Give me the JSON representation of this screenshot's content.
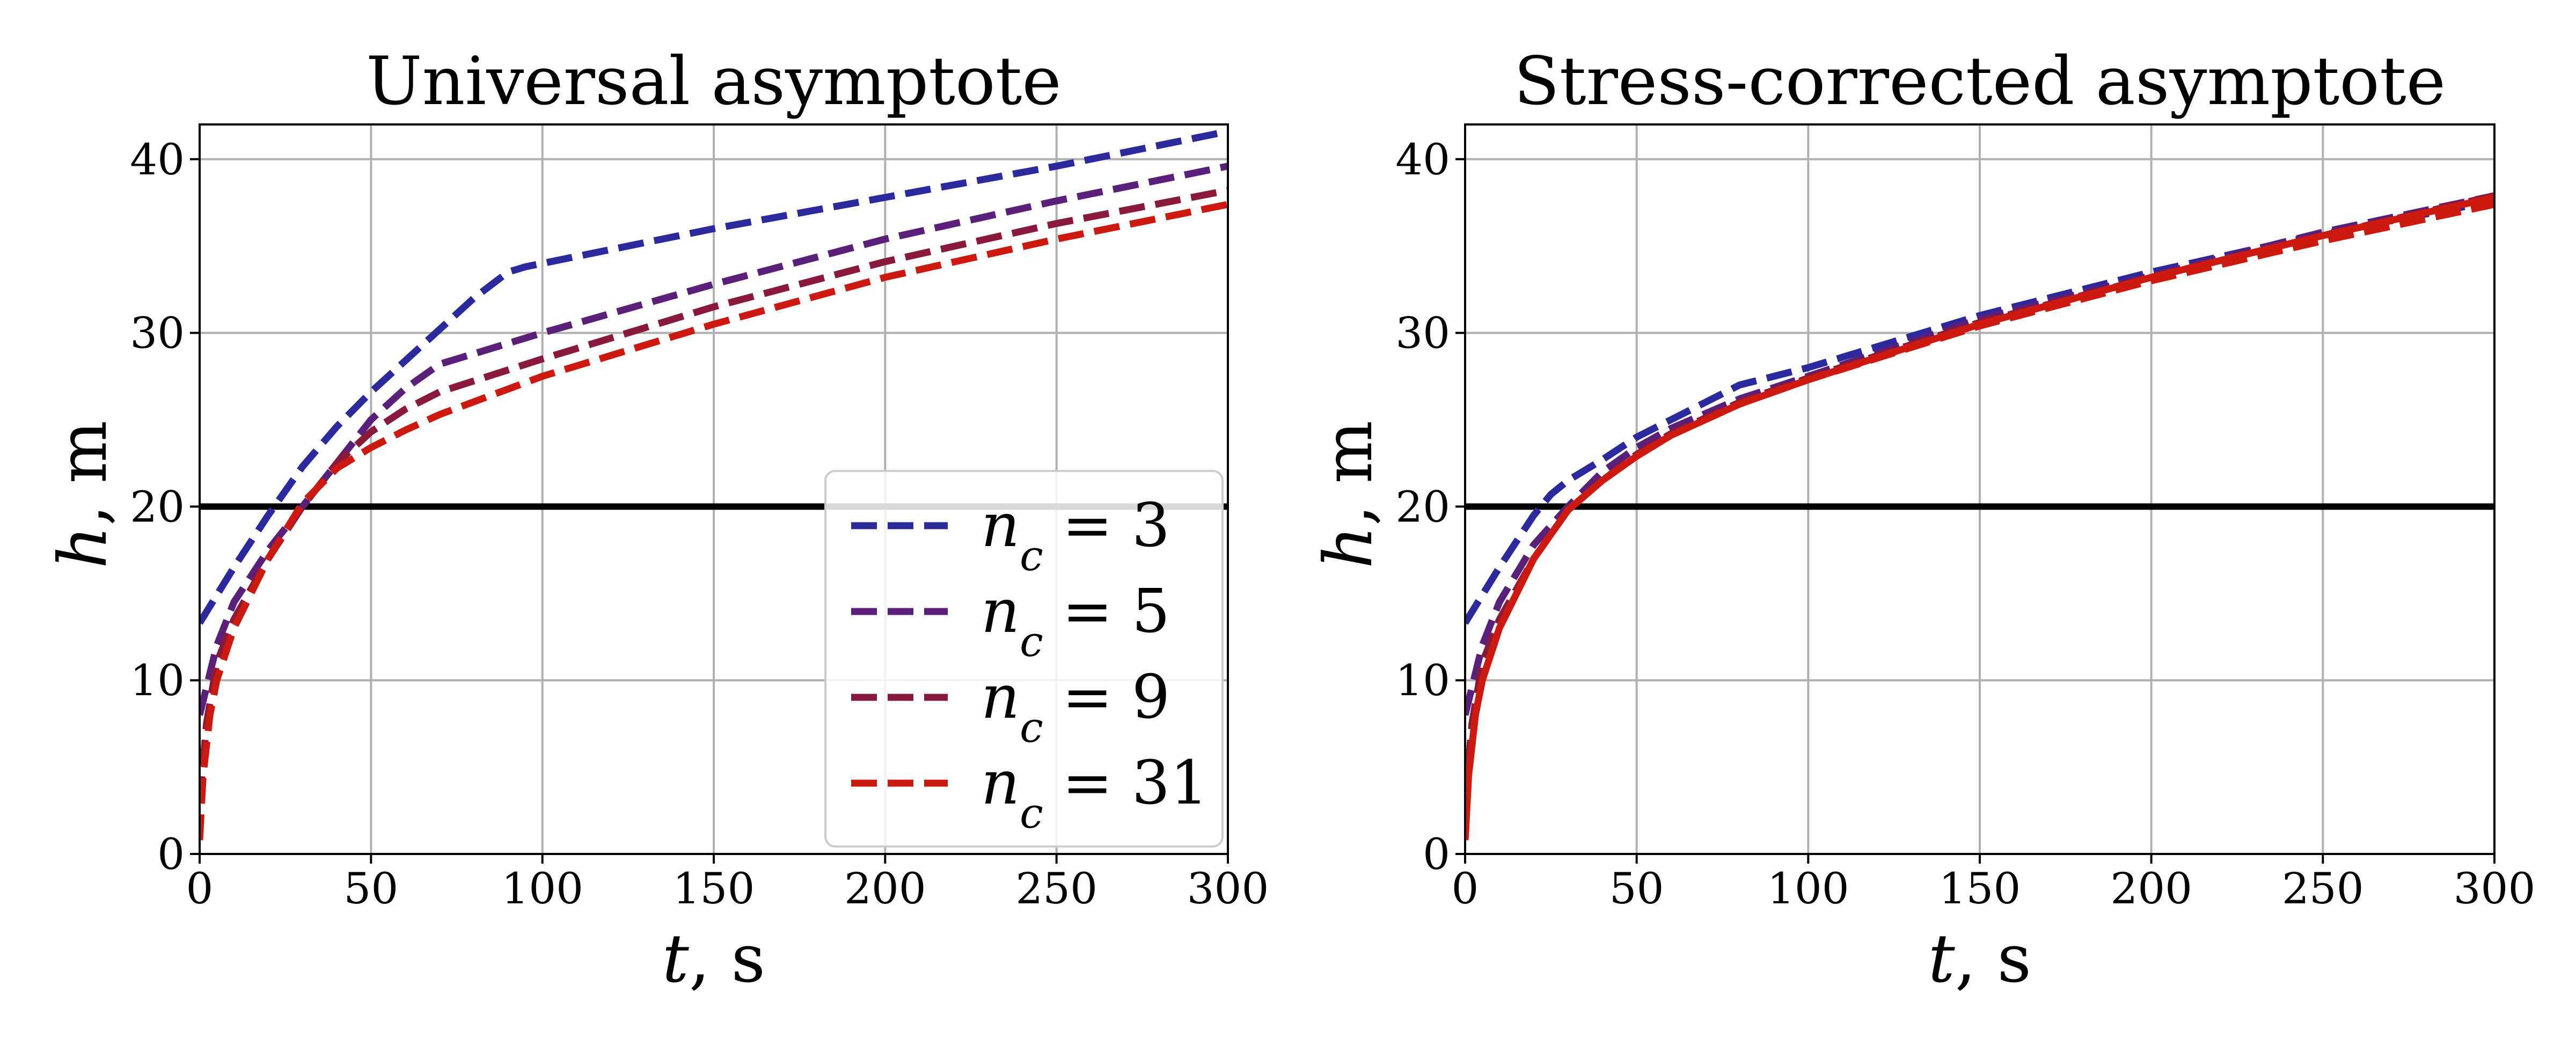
{
  "chart_data": [
    {
      "type": "line",
      "title": "Universal asymptote",
      "xlabel_var": "t",
      "xlabel_unit": ", s",
      "ylabel_var": "h",
      "ylabel_unit": ", m",
      "xlim": [
        0,
        300
      ],
      "ylim": [
        0,
        42
      ],
      "xticks": [
        0,
        50,
        100,
        150,
        200,
        250,
        300
      ],
      "yticks": [
        0,
        10,
        20,
        30,
        40
      ],
      "grid": true,
      "legend": {
        "placement": "lower-right",
        "var": "n",
        "sub": "c",
        "eq": " = "
      },
      "hline": {
        "y": 20,
        "color": "#000000"
      },
      "series": [
        {
          "name": "3",
          "color": "#2a2a9c",
          "style": "dashed",
          "x": [
            0,
            10,
            20,
            30,
            40,
            50,
            60,
            70,
            80,
            90,
            95,
            100,
            150,
            200,
            250,
            300
          ],
          "y": [
            13.3,
            16.5,
            19.5,
            22.3,
            24.6,
            26.6,
            28.4,
            30.2,
            32.0,
            33.5,
            33.8,
            34.0,
            36.0,
            37.8,
            39.6,
            41.6
          ]
        },
        {
          "name": "5",
          "color": "#5a1f78",
          "style": "dashed",
          "x": [
            0,
            5,
            10,
            20,
            30,
            40,
            50,
            60,
            70,
            100,
            150,
            200,
            250,
            300
          ],
          "y": [
            8.0,
            12.0,
            14.5,
            17.5,
            20.0,
            22.5,
            25.0,
            26.8,
            28.2,
            30.0,
            32.8,
            35.4,
            37.6,
            39.6
          ]
        },
        {
          "name": "9",
          "color": "#8a1a3a",
          "style": "dashed",
          "x": [
            0,
            2,
            5,
            10,
            20,
            30,
            40,
            50,
            60,
            70,
            100,
            150,
            200,
            250,
            300
          ],
          "y": [
            3.0,
            7.5,
            11.0,
            13.5,
            17.0,
            20.0,
            22.5,
            24.3,
            25.6,
            26.6,
            28.5,
            31.5,
            34.1,
            36.3,
            38.2
          ]
        },
        {
          "name": "31",
          "color": "#cc1a10",
          "style": "dashed",
          "x": [
            0,
            1,
            3,
            5,
            10,
            20,
            30,
            40,
            50,
            60,
            70,
            100,
            150,
            200,
            250,
            300
          ],
          "y": [
            0.8,
            4.5,
            8.0,
            10.0,
            13.0,
            17.0,
            20.2,
            22.2,
            23.4,
            24.4,
            25.3,
            27.5,
            30.5,
            33.2,
            35.4,
            37.4
          ]
        }
      ]
    },
    {
      "type": "line",
      "title": "Stress-corrected asymptote",
      "xlabel_var": "t",
      "xlabel_unit": ", s",
      "ylabel_var": "h",
      "ylabel_unit": ", m",
      "xlim": [
        0,
        300
      ],
      "ylim": [
        0,
        42
      ],
      "xticks": [
        0,
        50,
        100,
        150,
        200,
        250,
        300
      ],
      "yticks": [
        0,
        10,
        20,
        30,
        40
      ],
      "grid": true,
      "hline": {
        "y": 20,
        "color": "#000000"
      },
      "series": [
        {
          "name": "3",
          "color": "#2a2a9c",
          "style": "dashed",
          "x": [
            0,
            10,
            20,
            25,
            30,
            40,
            50,
            60,
            80,
            100,
            150,
            200,
            250,
            300
          ],
          "y": [
            13.3,
            16.5,
            19.5,
            20.7,
            21.5,
            22.7,
            24.0,
            25.0,
            27.0,
            28.0,
            31.0,
            33.5,
            35.7,
            37.6
          ]
        },
        {
          "name": "5",
          "color": "#5a1f78",
          "style": "dashed",
          "x": [
            0,
            5,
            10,
            20,
            30,
            40,
            50,
            60,
            80,
            100,
            150,
            200,
            250,
            300
          ],
          "y": [
            8.0,
            12.0,
            14.5,
            17.8,
            20.0,
            22.0,
            23.4,
            24.5,
            26.2,
            27.5,
            30.8,
            33.3,
            35.8,
            37.9
          ]
        },
        {
          "name": "9",
          "color": "#8a1a3a",
          "style": "dashed",
          "x": [
            0,
            2,
            5,
            10,
            20,
            30,
            40,
            50,
            60,
            80,
            100,
            150,
            200,
            250,
            300
          ],
          "y": [
            3.0,
            7.5,
            11.0,
            13.5,
            17.0,
            19.8,
            21.5,
            23.0,
            24.2,
            26.0,
            27.4,
            30.6,
            33.2,
            35.6,
            37.9
          ]
        },
        {
          "name": "31",
          "color": "#cc1a10",
          "style": "dashed",
          "x": [
            0,
            1,
            3,
            5,
            10,
            20,
            30,
            40,
            50,
            60,
            80,
            100,
            150,
            200,
            250,
            300
          ],
          "y": [
            0.8,
            4.5,
            8.0,
            10.0,
            13.0,
            17.0,
            19.8,
            21.5,
            22.9,
            24.1,
            25.9,
            27.3,
            30.4,
            33.0,
            35.3,
            37.4
          ]
        },
        {
          "name": "",
          "color": "#cc1a10",
          "style": "solid",
          "x": [
            0,
            1,
            3,
            5,
            10,
            20,
            30,
            40,
            50,
            60,
            80,
            100,
            150,
            200,
            250,
            300
          ],
          "y": [
            0.8,
            4.5,
            8.0,
            10.0,
            13.0,
            17.0,
            19.8,
            21.5,
            22.9,
            24.1,
            25.9,
            27.3,
            30.5,
            33.2,
            35.6,
            37.8
          ]
        }
      ]
    }
  ]
}
